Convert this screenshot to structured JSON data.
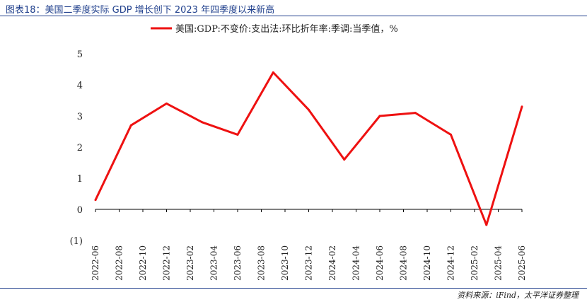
{
  "header": {
    "figure_title": "图表18：美国二季度实际 GDP 增长创下 2023 年四季度以来新高"
  },
  "footer": {
    "source": "资料来源：iFind，太平洋证券整理"
  },
  "colors": {
    "series": "#ee1111",
    "negative_label": "#d40000",
    "title": "#1f3f8c"
  },
  "chart_data": {
    "type": "line",
    "title": "",
    "xlabel": "",
    "ylabel": "",
    "x": [
      "2022-06",
      "2022-08",
      "2022-10",
      "2022-12",
      "2023-02",
      "2023-04",
      "2023-06",
      "2023-08",
      "2023-10",
      "2023-12",
      "2024-02",
      "2024-04",
      "2024-06",
      "2024-08",
      "2024-10",
      "2024-12",
      "2025-02",
      "2025-04",
      "2025-06"
    ],
    "y_ticks": [
      "5",
      "4",
      "3",
      "2",
      "1",
      "0",
      "(1)"
    ],
    "y_tick_values": [
      5,
      4,
      3,
      2,
      1,
      0,
      -1
    ],
    "ylim": [
      -1,
      5
    ],
    "grid": false,
    "legend_position": "top",
    "series": [
      {
        "name": "美国:GDP:不变价:支出法:环比折年率:季调:当季值，%",
        "points": [
          {
            "x": "2022-06",
            "y": 0.3
          },
          {
            "x": "2022-09",
            "y": 2.7
          },
          {
            "x": "2022-12",
            "y": 3.4
          },
          {
            "x": "2023-03",
            "y": 2.8
          },
          {
            "x": "2023-06",
            "y": 2.4
          },
          {
            "x": "2023-09",
            "y": 4.4
          },
          {
            "x": "2023-12",
            "y": 3.2
          },
          {
            "x": "2024-03",
            "y": 1.6
          },
          {
            "x": "2024-06",
            "y": 3.0
          },
          {
            "x": "2024-09",
            "y": 3.1
          },
          {
            "x": "2024-12",
            "y": 2.4
          },
          {
            "x": "2025-03",
            "y": -0.5
          },
          {
            "x": "2025-06",
            "y": 3.3
          }
        ]
      }
    ]
  }
}
